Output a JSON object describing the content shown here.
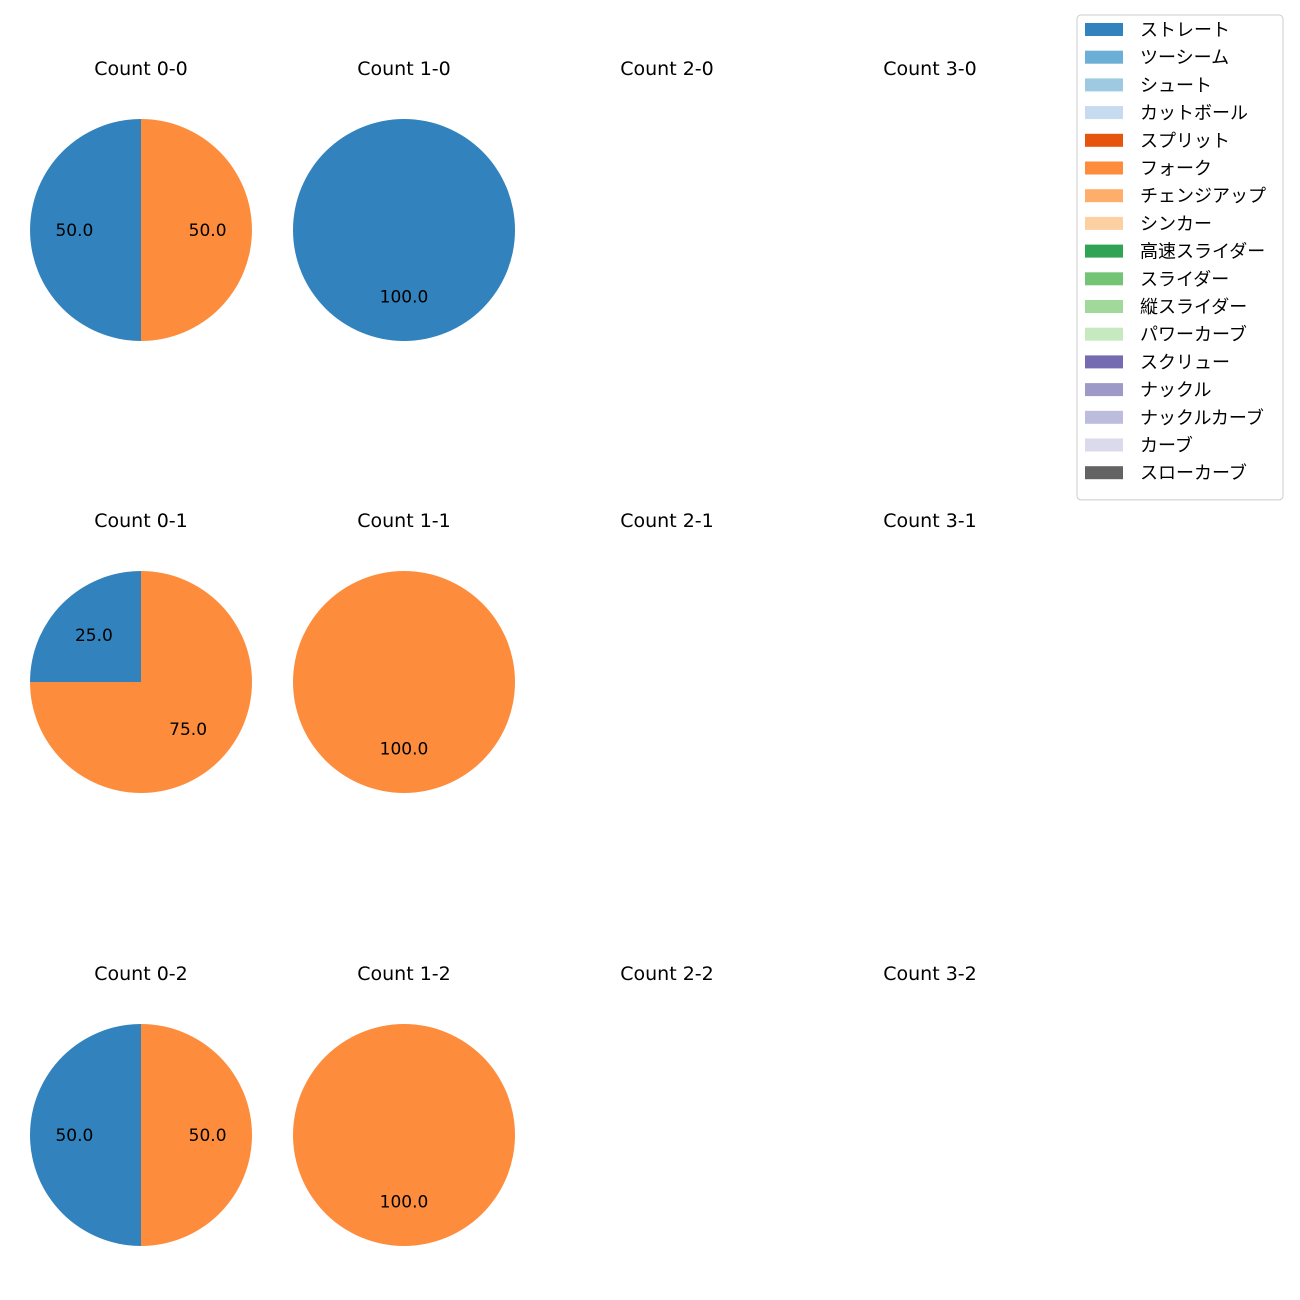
{
  "chart_data": {
    "type": "pie",
    "legend_position": "top-right",
    "legend": [
      {
        "label": "ストレート",
        "color": "#3182bd"
      },
      {
        "label": "ツーシーム",
        "color": "#6baed6"
      },
      {
        "label": "シュート",
        "color": "#9ecae1"
      },
      {
        "label": "カットボール",
        "color": "#c6dbef"
      },
      {
        "label": "スプリット",
        "color": "#e6550d"
      },
      {
        "label": "フォーク",
        "color": "#fd8d3c"
      },
      {
        "label": "チェンジアップ",
        "color": "#fdae6b"
      },
      {
        "label": "シンカー",
        "color": "#fdd0a2"
      },
      {
        "label": "高速スライダー",
        "color": "#31a354"
      },
      {
        "label": "スライダー",
        "color": "#74c476"
      },
      {
        "label": "縦スライダー",
        "color": "#a1d99b"
      },
      {
        "label": "パワーカーブ",
        "color": "#c7e9c0"
      },
      {
        "label": "スクリュー",
        "color": "#756bb1"
      },
      {
        "label": "ナックル",
        "color": "#9e9ac8"
      },
      {
        "label": "ナックルカーブ",
        "color": "#bcbddc"
      },
      {
        "label": "カーブ",
        "color": "#dadaeb"
      },
      {
        "label": "スローカーブ",
        "color": "#636363"
      }
    ],
    "panels": [
      {
        "title": "Count 0-0",
        "row": 0,
        "col": 0,
        "slices": [
          {
            "label": "ストレート",
            "value": 50.0
          },
          {
            "label": "フォーク",
            "value": 50.0
          }
        ]
      },
      {
        "title": "Count 1-0",
        "row": 0,
        "col": 1,
        "slices": [
          {
            "label": "ストレート",
            "value": 100.0
          }
        ]
      },
      {
        "title": "Count 2-0",
        "row": 0,
        "col": 2,
        "slices": []
      },
      {
        "title": "Count 3-0",
        "row": 0,
        "col": 3,
        "slices": []
      },
      {
        "title": "Count 0-1",
        "row": 1,
        "col": 0,
        "slices": [
          {
            "label": "ストレート",
            "value": 25.0
          },
          {
            "label": "フォーク",
            "value": 75.0
          }
        ]
      },
      {
        "title": "Count 1-1",
        "row": 1,
        "col": 1,
        "slices": [
          {
            "label": "フォーク",
            "value": 100.0
          }
        ]
      },
      {
        "title": "Count 2-1",
        "row": 1,
        "col": 2,
        "slices": []
      },
      {
        "title": "Count 3-1",
        "row": 1,
        "col": 3,
        "slices": []
      },
      {
        "title": "Count 0-2",
        "row": 2,
        "col": 0,
        "slices": [
          {
            "label": "ストレート",
            "value": 50.0
          },
          {
            "label": "フォーク",
            "value": 50.0
          }
        ]
      },
      {
        "title": "Count 1-2",
        "row": 2,
        "col": 1,
        "slices": [
          {
            "label": "フォーク",
            "value": 100.0
          }
        ]
      },
      {
        "title": "Count 2-2",
        "row": 2,
        "col": 2,
        "slices": []
      },
      {
        "title": "Count 3-2",
        "row": 2,
        "col": 3,
        "slices": []
      }
    ]
  }
}
